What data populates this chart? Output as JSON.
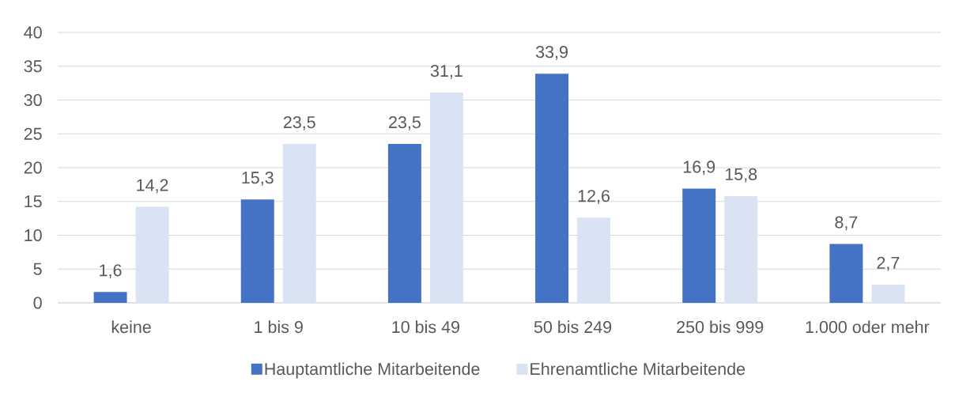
{
  "chart_data": {
    "type": "bar",
    "categories": [
      "keine",
      "1 bis 9",
      "10 bis 49",
      "50 bis 249",
      "250 bis 999",
      "1.000 oder mehr"
    ],
    "series": [
      {
        "name": "Hauptamtliche Mitarbeitende",
        "color": "#4472c4",
        "values": [
          1.6,
          15.3,
          23.5,
          33.9,
          16.9,
          8.7
        ],
        "value_labels": [
          "1,6",
          "15,3",
          "23,5",
          "33,9",
          "16,9",
          "8,7"
        ]
      },
      {
        "name": "Ehrenamtliche Mitarbeitende",
        "color": "#dae3f3",
        "values": [
          14.2,
          23.5,
          31.1,
          12.6,
          15.8,
          2.7
        ],
        "value_labels": [
          "14,2",
          "23,5",
          "31,1",
          "12,6",
          "15,8",
          "2,7"
        ]
      }
    ],
    "ylim": [
      0,
      40
    ],
    "yticks": [
      0,
      5,
      10,
      15,
      20,
      25,
      30,
      35,
      40
    ],
    "grid": "y",
    "legend": "bottom"
  }
}
